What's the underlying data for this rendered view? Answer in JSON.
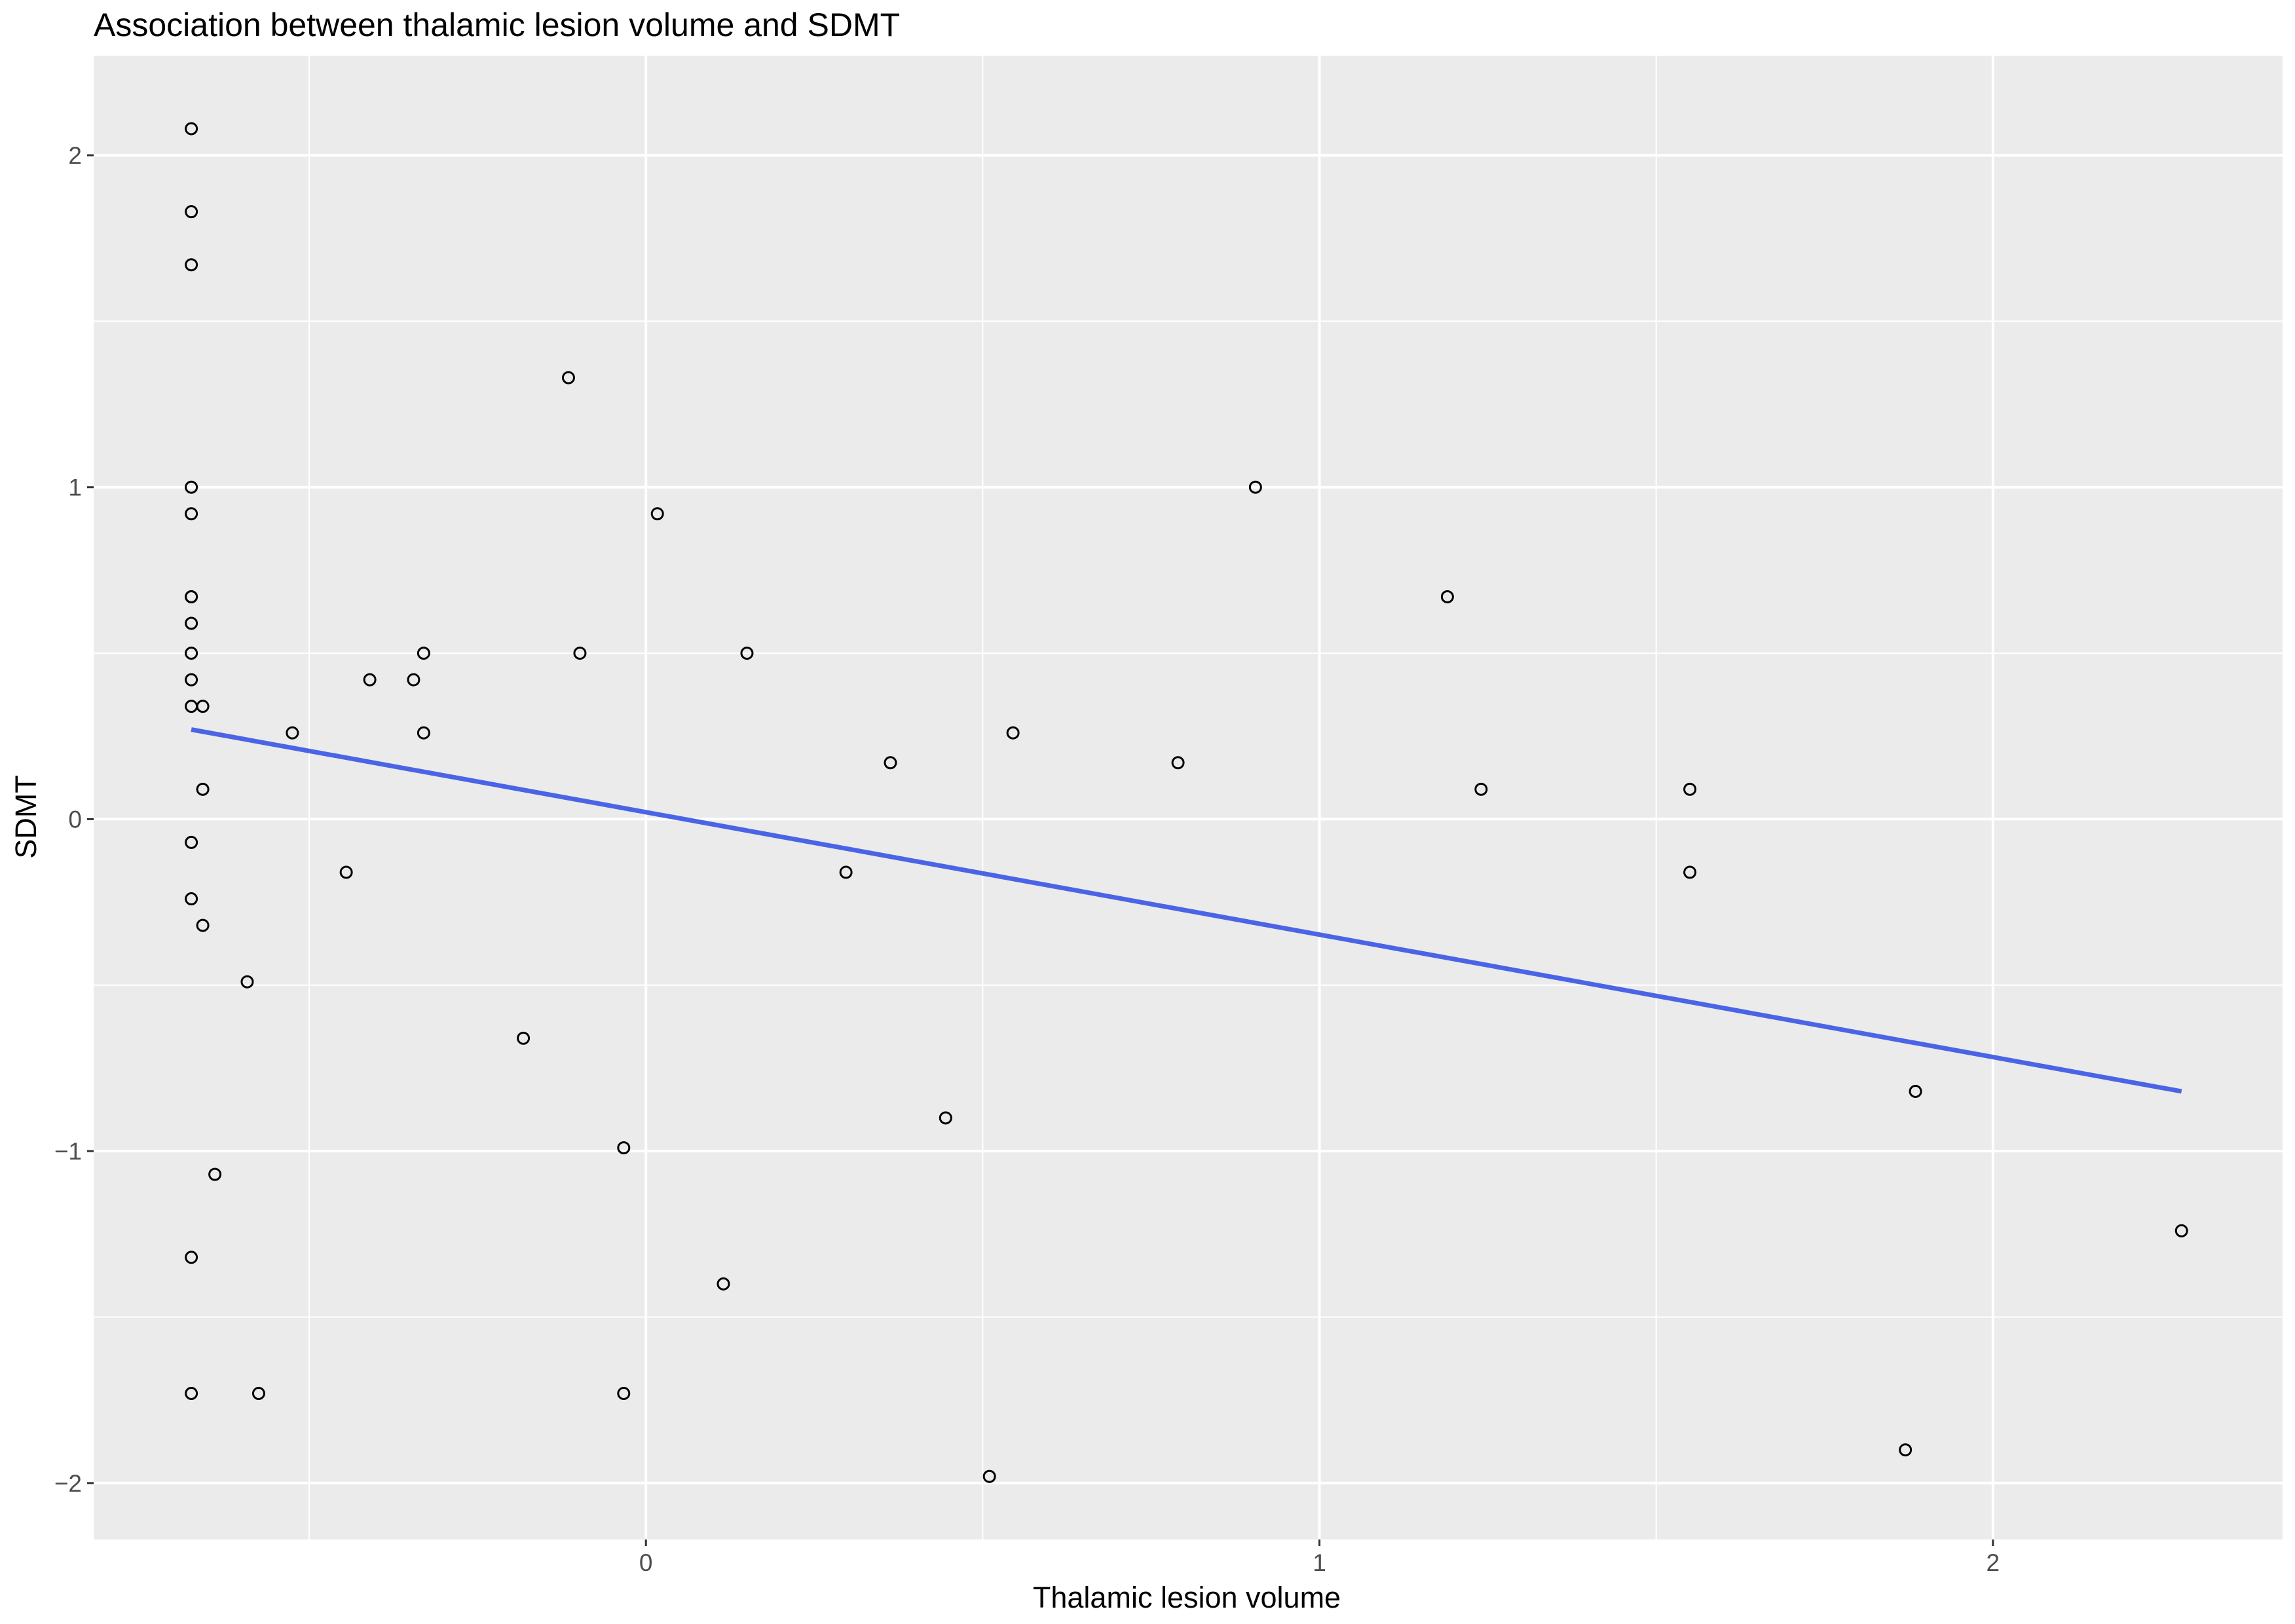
{
  "chart_data": {
    "type": "scatter",
    "title": "Association between thalamic lesion volume and SDMT",
    "xlabel": "Thalamic lesion volume",
    "ylabel": "SDMT",
    "xlim": [
      -0.82,
      2.43
    ],
    "ylim": [
      -2.17,
      2.3
    ],
    "x_ticks": [
      0,
      1,
      2
    ],
    "x_tick_labels": [
      "0",
      "1",
      "2"
    ],
    "y_ticks": [
      -2,
      -1,
      0,
      1,
      2
    ],
    "y_tick_labels": [
      "−2",
      "−1",
      "0",
      "1",
      "2"
    ],
    "grid": true,
    "background": "#ebebeb",
    "grid_color": "#ffffff",
    "point_color": "#000000",
    "fit_line_color": "#4b64e6",
    "points": [
      {
        "x": -0.675,
        "y": 2.08
      },
      {
        "x": -0.675,
        "y": 1.83
      },
      {
        "x": -0.675,
        "y": 1.67
      },
      {
        "x": -0.675,
        "y": 1.0
      },
      {
        "x": -0.675,
        "y": 0.92
      },
      {
        "x": -0.675,
        "y": 0.67
      },
      {
        "x": -0.675,
        "y": 0.67
      },
      {
        "x": -0.675,
        "y": 0.59
      },
      {
        "x": -0.675,
        "y": 0.5
      },
      {
        "x": -0.675,
        "y": 0.42
      },
      {
        "x": -0.675,
        "y": 0.34
      },
      {
        "x": -0.658,
        "y": 0.34
      },
      {
        "x": -0.658,
        "y": 0.09
      },
      {
        "x": -0.675,
        "y": -0.07
      },
      {
        "x": -0.675,
        "y": -0.24
      },
      {
        "x": -0.658,
        "y": -0.32
      },
      {
        "x": -0.592,
        "y": -0.49
      },
      {
        "x": -0.64,
        "y": -1.07
      },
      {
        "x": -0.675,
        "y": -1.32
      },
      {
        "x": -0.675,
        "y": -1.73
      },
      {
        "x": -0.575,
        "y": -1.73
      },
      {
        "x": -0.525,
        "y": 0.26
      },
      {
        "x": -0.445,
        "y": -0.16
      },
      {
        "x": -0.41,
        "y": 0.42
      },
      {
        "x": -0.345,
        "y": 0.42
      },
      {
        "x": -0.33,
        "y": 0.5
      },
      {
        "x": -0.33,
        "y": 0.26
      },
      {
        "x": -0.182,
        "y": -0.66
      },
      {
        "x": -0.115,
        "y": 1.33
      },
      {
        "x": -0.098,
        "y": 0.5
      },
      {
        "x": -0.033,
        "y": -0.99
      },
      {
        "x": -0.033,
        "y": -1.73
      },
      {
        "x": 0.017,
        "y": 0.92
      },
      {
        "x": 0.115,
        "y": -1.4
      },
      {
        "x": 0.15,
        "y": 0.5
      },
      {
        "x": 0.297,
        "y": -0.16
      },
      {
        "x": 0.363,
        "y": 0.17
      },
      {
        "x": 0.445,
        "y": -0.9
      },
      {
        "x": 0.51,
        "y": -1.98
      },
      {
        "x": 0.545,
        "y": 0.26
      },
      {
        "x": 0.79,
        "y": 0.17
      },
      {
        "x": 0.905,
        "y": 1.0
      },
      {
        "x": 1.19,
        "y": 0.67
      },
      {
        "x": 1.24,
        "y": 0.09
      },
      {
        "x": 1.55,
        "y": 0.09
      },
      {
        "x": 1.55,
        "y": -0.16
      },
      {
        "x": 1.87,
        "y": -1.9
      },
      {
        "x": 1.885,
        "y": -0.82
      },
      {
        "x": 2.28,
        "y": -1.24
      }
    ],
    "fit_line": {
      "x": [
        -0.675,
        2.28
      ],
      "y": [
        0.27,
        -0.82
      ]
    }
  }
}
